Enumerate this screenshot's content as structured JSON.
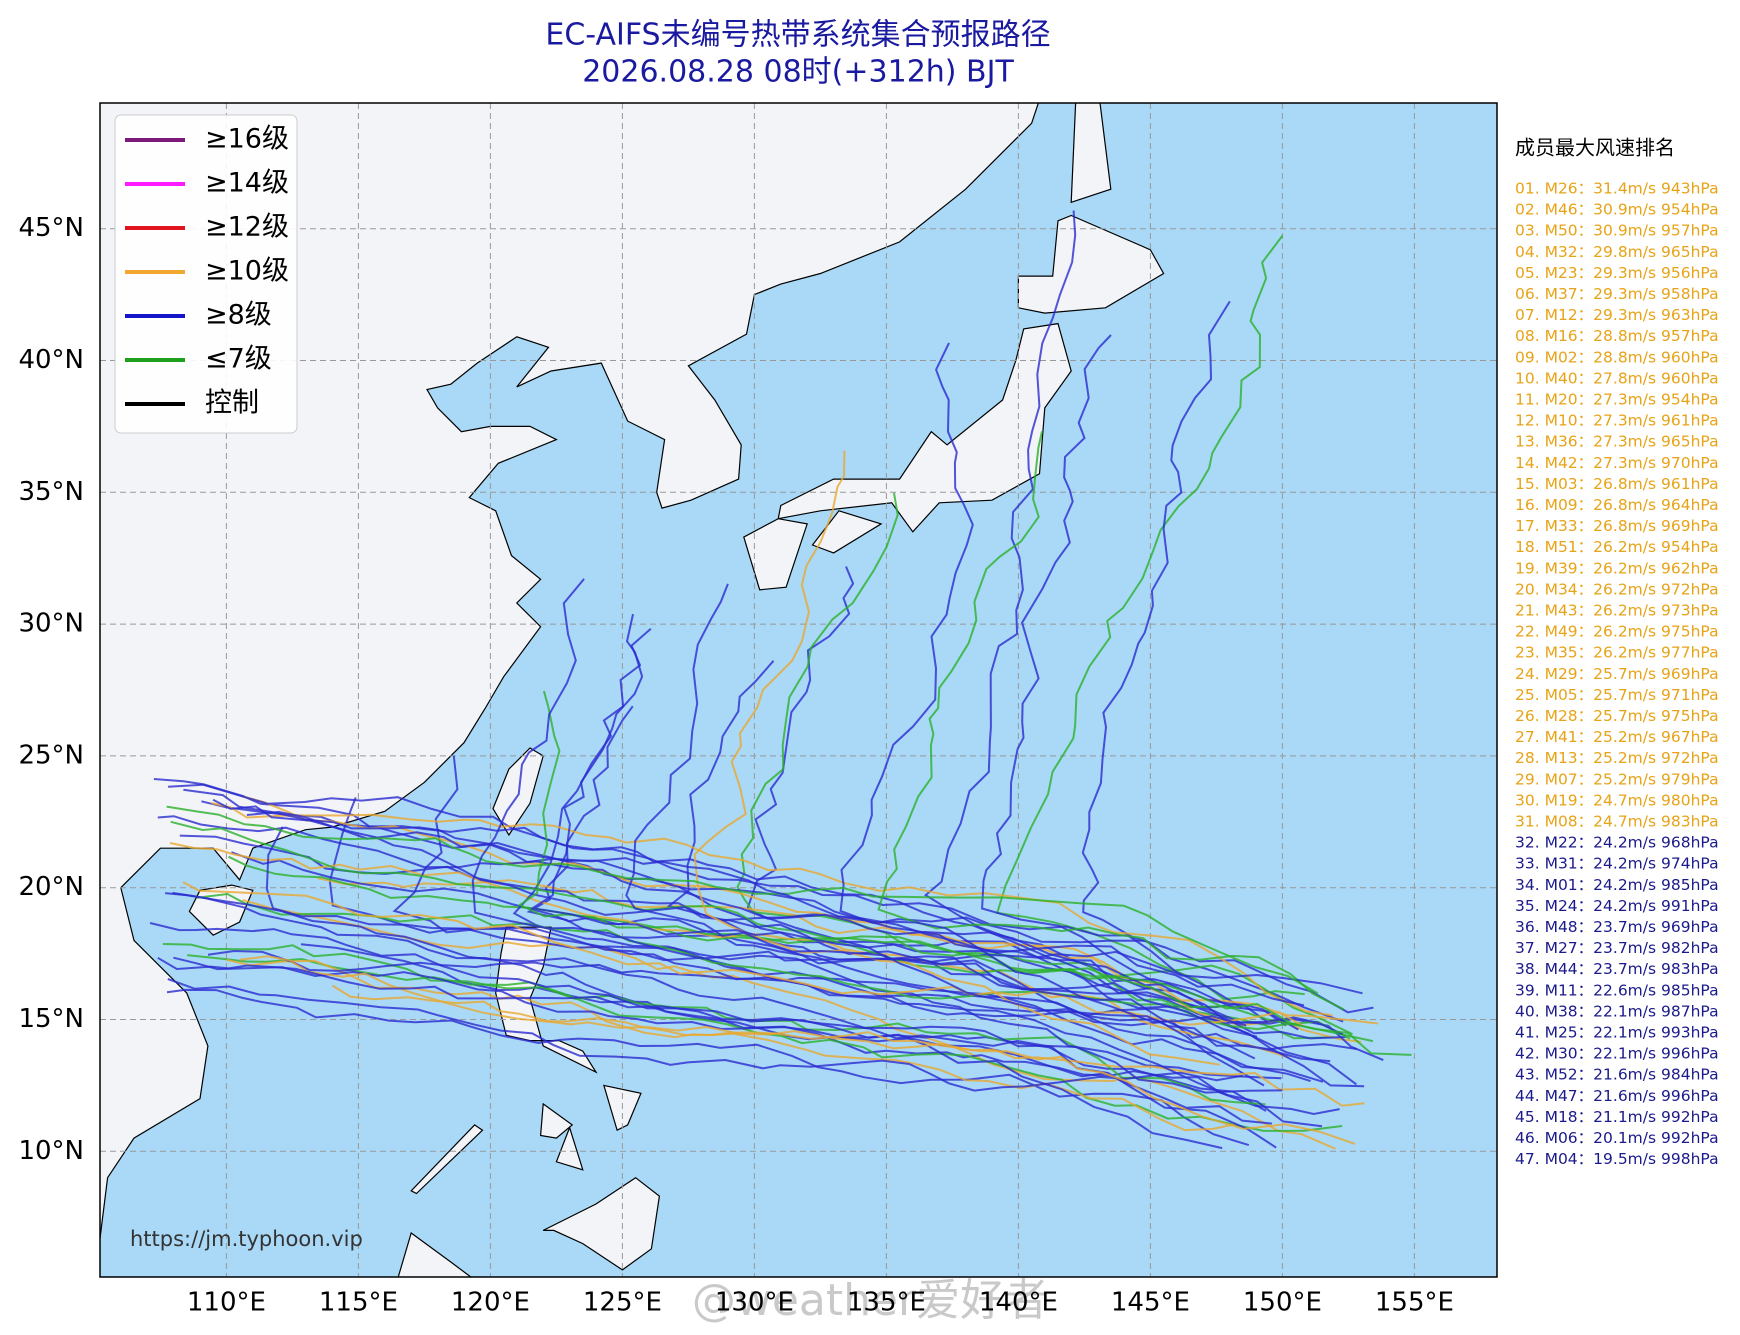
{
  "map": {
    "title": "EC-AIFS未编号热带系统集合预报路径",
    "subtitle": "2026.08.28 08时(+312h) BJT",
    "lat_ticks": [
      {
        "value": 45,
        "label": "45°N"
      },
      {
        "value": 40,
        "label": "40°N"
      },
      {
        "value": 35,
        "label": "35°N"
      },
      {
        "value": 30,
        "label": "30°N"
      },
      {
        "value": 25,
        "label": "25°N"
      },
      {
        "value": 20,
        "label": "20°N"
      },
      {
        "value": 15,
        "label": "15°N"
      },
      {
        "value": 10,
        "label": "10°N"
      }
    ],
    "lon_ticks": [
      {
        "value": 110,
        "label": "110°E"
      },
      {
        "value": 115,
        "label": "115°E"
      },
      {
        "value": 120,
        "label": "120°E"
      },
      {
        "value": 125,
        "label": "125°E"
      },
      {
        "value": 130,
        "label": "130°E"
      },
      {
        "value": 135,
        "label": "135°E"
      },
      {
        "value": 140,
        "label": "140°E"
      },
      {
        "value": 145,
        "label": "145°E"
      },
      {
        "value": 150,
        "label": "150°E"
      },
      {
        "value": 155,
        "label": "155°E"
      }
    ],
    "legend": [
      {
        "label": "≥16级",
        "color": "#7b1a78"
      },
      {
        "label": "≥14级",
        "color": "#ff1aff"
      },
      {
        "label": "≥12级",
        "color": "#e0141e"
      },
      {
        "label": "≥10级",
        "color": "#f0a830"
      },
      {
        "label": "≥8级",
        "color": "#1414c8"
      },
      {
        "label": "≤7级",
        "color": "#1ea01e"
      },
      {
        "label": "控制",
        "color": "#000000"
      }
    ],
    "ranking": {
      "title": "成员最大风速排名",
      "groups": [
        {
          "color": "#e8a317",
          "entries": [
            "01. M26：31.4m/s 943hPa",
            "02. M46：30.9m/s 954hPa",
            "03. M50：30.9m/s 957hPa",
            "04. M32：29.8m/s 965hPa",
            "05. M23：29.3m/s 956hPa",
            "06. M37：29.3m/s 958hPa",
            "07. M12：29.3m/s 963hPa",
            "08. M16：28.8m/s 957hPa",
            "09. M02：28.8m/s 960hPa",
            "10. M40：27.8m/s 960hPa",
            "11. M20：27.3m/s 954hPa",
            "12. M10：27.3m/s 961hPa",
            "13. M36：27.3m/s 965hPa",
            "14. M42：27.3m/s 970hPa",
            "15. M03：26.8m/s 961hPa",
            "16. M09：26.8m/s 964hPa",
            "17. M33：26.8m/s 969hPa",
            "18. M51：26.2m/s 954hPa",
            "19. M39：26.2m/s 962hPa",
            "20. M34：26.2m/s 972hPa",
            "21. M43：26.2m/s 973hPa",
            "22. M49：26.2m/s 975hPa",
            "23. M35：26.2m/s 977hPa",
            "24. M29：25.7m/s 969hPa",
            "25. M05：25.7m/s 971hPa",
            "26. M28：25.7m/s 975hPa",
            "27. M41：25.2m/s 967hPa",
            "28. M13：25.2m/s 972hPa",
            "29. M07：25.2m/s 979hPa",
            "30. M19：24.7m/s 980hPa",
            "31. M08：24.7m/s 983hPa"
          ]
        },
        {
          "color": "#1a1a8c",
          "entries": [
            "32. M22：24.2m/s 968hPa",
            "33. M31：24.2m/s 974hPa",
            "34. M01：24.2m/s 985hPa",
            "35. M24：24.2m/s 991hPa",
            "36. M48：23.7m/s 969hPa",
            "37. M27：23.7m/s 982hPa",
            "38. M44：23.7m/s 983hPa",
            "39. M11：22.6m/s 985hPa",
            "40. M38：22.1m/s 987hPa",
            "41. M25：22.1m/s 993hPa",
            "42. M30：22.1m/s 996hPa",
            "43. M52：21.6m/s 984hPa",
            "44. M47：21.6m/s 996hPa",
            "45. M18：21.1m/s 992hPa",
            "46. M06：20.1m/s 992hPa",
            "47. M04：19.5m/s 998hPa"
          ]
        }
      ]
    },
    "url": "https://jm.typhoon.vip",
    "watermark": "@weather爱好者"
  }
}
